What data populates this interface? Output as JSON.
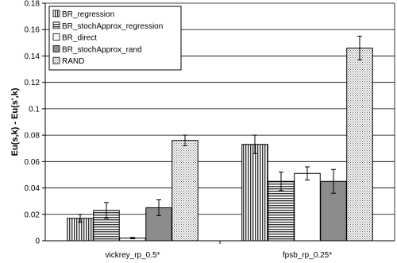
{
  "chart_data": {
    "type": "bar",
    "title": "",
    "xlabel": "",
    "ylabel": "Eu(s,k) - Eu(s',k)",
    "ylim": [
      0,
      0.18
    ],
    "yticks": [
      "0",
      "0.02",
      "0.04",
      "0.06",
      "0.08",
      "0.1",
      "0.12",
      "0.14",
      "0.16",
      "0.18"
    ],
    "grid": true,
    "legend_position": "top-left",
    "categories": [
      "vickrey_rp_0.5*",
      "fpsb_rp_0.25*"
    ],
    "series": [
      {
        "name": "BR_regression",
        "pattern": "vertical-lines",
        "values": [
          0.017,
          0.073
        ],
        "errors": [
          0.003,
          0.007
        ]
      },
      {
        "name": "BR_stochApprox_regression",
        "pattern": "horizontal-lines",
        "values": [
          0.023,
          0.045
        ],
        "errors": [
          0.006,
          0.007
        ]
      },
      {
        "name": "BR_direct",
        "pattern": "white",
        "values": [
          0.002,
          0.051
        ],
        "errors": [
          0.0005,
          0.005
        ]
      },
      {
        "name": "BR_stochApprox_rand",
        "pattern": "gray",
        "values": [
          0.025,
          0.045
        ],
        "errors": [
          0.006,
          0.009
        ]
      },
      {
        "name": "RAND",
        "pattern": "dots",
        "values": [
          0.076,
          0.146
        ],
        "errors": [
          0.004,
          0.009
        ]
      }
    ]
  }
}
